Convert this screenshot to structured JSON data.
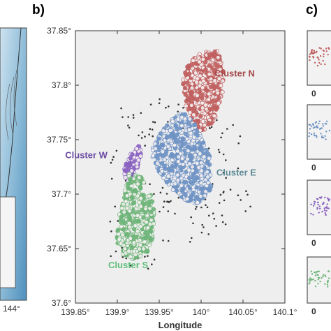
{
  "panels": {
    "b": {
      "label": "b)"
    },
    "c": {
      "label": "c)"
    }
  },
  "left_strip": {
    "tick_label": "144°"
  },
  "right_strip": {
    "row_labels": [
      "0",
      "0",
      "0",
      "0"
    ]
  },
  "colors": {
    "plot_bg": "#eeeeee",
    "cluster_n": "#c06060",
    "cluster_e": "#6f93c4",
    "cluster_w": "#8a63c0",
    "cluster_s": "#6fb57a",
    "other_events": "#333333",
    "point_fill": "#f3eeee"
  },
  "chart_data": {
    "type": "scatter",
    "title": "",
    "xlabel": "Longitude",
    "ylabel": "",
    "xlim": [
      139.85,
      140.1
    ],
    "ylim": [
      37.6,
      37.85
    ],
    "x_ticks": [
      "139.85°",
      "139.9°",
      "139.95°",
      "140°",
      "140.05°",
      "140.1°"
    ],
    "y_ticks": [
      "37.6°",
      "37.65°",
      "37.7°",
      "37.75°",
      "37.8°",
      "37.85°"
    ],
    "grid": false,
    "annotations": [
      {
        "text": "Cluster N",
        "x": 140.04,
        "y": 37.808,
        "color": "#a64a4a"
      },
      {
        "text": "Cluster W",
        "x": 139.863,
        "y": 37.733,
        "color": "#6a4aa3"
      },
      {
        "text": "Cluster E",
        "x": 140.042,
        "y": 37.717,
        "color": "#5d8a96"
      },
      {
        "text": "Cluster S",
        "x": 139.913,
        "y": 37.632,
        "color": "#5fbf7a"
      }
    ],
    "series": [
      {
        "name": "Cluster N",
        "color": "#c06060",
        "region": [
          [
            139.985,
            37.82
          ],
          [
            140.0,
            37.83
          ],
          [
            140.02,
            37.832
          ],
          [
            140.028,
            37.81
          ],
          [
            140.025,
            37.79
          ],
          [
            140.015,
            37.765
          ],
          [
            140.0,
            37.757
          ],
          [
            139.99,
            37.765
          ],
          [
            139.98,
            37.785
          ],
          [
            139.978,
            37.805
          ]
        ],
        "count": 460
      },
      {
        "name": "Cluster E",
        "color": "#6f93c4",
        "region": [
          [
            139.965,
            37.77
          ],
          [
            139.98,
            37.775
          ],
          [
            139.995,
            37.762
          ],
          [
            140.01,
            37.735
          ],
          [
            140.012,
            37.705
          ],
          [
            139.995,
            37.69
          ],
          [
            139.98,
            37.695
          ],
          [
            139.965,
            37.705
          ],
          [
            139.95,
            37.72
          ],
          [
            139.94,
            37.735
          ],
          [
            139.945,
            37.75
          ],
          [
            139.958,
            37.762
          ]
        ],
        "count": 620
      },
      {
        "name": "Cluster W",
        "color": "#8a63c0",
        "region": [
          [
            139.925,
            37.745
          ],
          [
            139.93,
            37.74
          ],
          [
            139.925,
            37.725
          ],
          [
            139.918,
            37.71
          ],
          [
            139.91,
            37.71
          ],
          [
            139.908,
            37.722
          ],
          [
            139.912,
            37.735
          ]
        ],
        "count": 70
      },
      {
        "name": "Cluster S",
        "color": "#6fb57a",
        "region": [
          [
            139.915,
            37.72
          ],
          [
            139.93,
            37.715
          ],
          [
            139.94,
            37.7
          ],
          [
            139.945,
            37.68
          ],
          [
            139.942,
            37.66
          ],
          [
            139.935,
            37.645
          ],
          [
            139.92,
            37.64
          ],
          [
            139.905,
            37.645
          ],
          [
            139.898,
            37.66
          ],
          [
            139.902,
            37.68
          ],
          [
            139.908,
            37.7
          ]
        ],
        "count": 420
      },
      {
        "name": "",
        "color": "#333333",
        "region": [
          [
            139.9,
            37.78
          ],
          [
            139.96,
            37.79
          ],
          [
            140.05,
            37.76
          ],
          [
            140.06,
            37.68
          ],
          [
            140.0,
            37.66
          ],
          [
            139.94,
            37.62
          ],
          [
            139.89,
            37.64
          ],
          [
            139.89,
            37.72
          ]
        ],
        "count": 180
      }
    ]
  }
}
